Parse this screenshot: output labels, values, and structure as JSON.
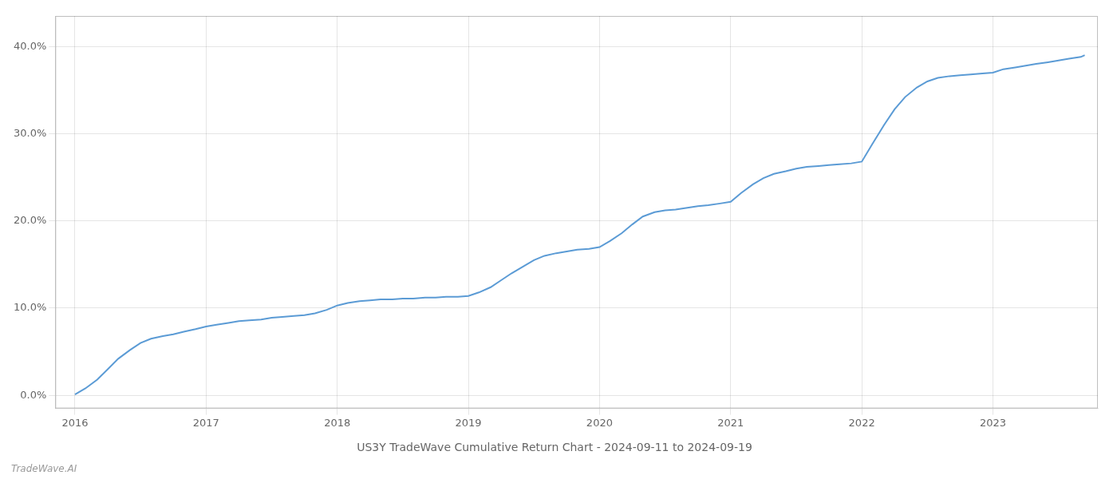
{
  "chart_data": {
    "type": "line",
    "title": "US3Y TradeWave Cumulative Return Chart - 2024-09-11 to 2024-09-19",
    "annotations": [
      "TradeWave.AI"
    ],
    "color": "#5b9bd5",
    "x": [
      2016.0,
      2016.08,
      2016.17,
      2016.25,
      2016.33,
      2016.42,
      2016.5,
      2016.58,
      2016.67,
      2016.75,
      2016.83,
      2016.92,
      2017.0,
      2017.08,
      2017.17,
      2017.25,
      2017.33,
      2017.42,
      2017.5,
      2017.58,
      2017.67,
      2017.75,
      2017.83,
      2017.92,
      2018.0,
      2018.08,
      2018.17,
      2018.25,
      2018.33,
      2018.42,
      2018.5,
      2018.58,
      2018.67,
      2018.75,
      2018.83,
      2018.92,
      2019.0,
      2019.08,
      2019.17,
      2019.25,
      2019.33,
      2019.42,
      2019.5,
      2019.58,
      2019.67,
      2019.75,
      2019.83,
      2019.92,
      2020.0,
      2020.08,
      2020.17,
      2020.25,
      2020.33,
      2020.42,
      2020.5,
      2020.58,
      2020.67,
      2020.75,
      2020.83,
      2020.92,
      2021.0,
      2021.08,
      2021.17,
      2021.25,
      2021.33,
      2021.42,
      2021.5,
      2021.58,
      2021.67,
      2021.75,
      2021.83,
      2021.92,
      2022.0,
      2022.08,
      2022.17,
      2022.25,
      2022.33,
      2022.42,
      2022.5,
      2022.58,
      2022.67,
      2022.75,
      2022.83,
      2022.92,
      2023.0,
      2023.08,
      2023.17,
      2023.25,
      2023.33,
      2023.42,
      2023.5,
      2023.58,
      2023.67,
      2023.7
    ],
    "values": [
      0.001,
      0.008,
      0.018,
      0.03,
      0.042,
      0.052,
      0.06,
      0.065,
      0.068,
      0.07,
      0.073,
      0.076,
      0.079,
      0.081,
      0.083,
      0.085,
      0.086,
      0.087,
      0.089,
      0.09,
      0.091,
      0.092,
      0.094,
      0.098,
      0.103,
      0.106,
      0.108,
      0.109,
      0.11,
      0.11,
      0.111,
      0.111,
      0.112,
      0.112,
      0.113,
      0.113,
      0.114,
      0.118,
      0.124,
      0.132,
      0.14,
      0.148,
      0.155,
      0.16,
      0.163,
      0.165,
      0.167,
      0.168,
      0.17,
      0.177,
      0.186,
      0.196,
      0.205,
      0.21,
      0.212,
      0.213,
      0.215,
      0.217,
      0.218,
      0.22,
      0.222,
      0.232,
      0.242,
      0.249,
      0.254,
      0.257,
      0.26,
      0.262,
      0.263,
      0.264,
      0.265,
      0.266,
      0.268,
      0.288,
      0.31,
      0.328,
      0.342,
      0.353,
      0.36,
      0.364,
      0.366,
      0.367,
      0.368,
      0.369,
      0.37,
      0.374,
      0.376,
      0.378,
      0.38,
      0.382,
      0.384,
      0.386,
      0.388,
      0.39
    ],
    "xlim": [
      2015.85,
      2023.8
    ],
    "ylim": [
      -0.015,
      0.435
    ],
    "xticks": [
      2016,
      2017,
      2018,
      2019,
      2020,
      2021,
      2022,
      2023
    ],
    "yticks": [
      {
        "value": 0.0,
        "label": "0.0%"
      },
      {
        "value": 0.1,
        "label": "10.0%"
      },
      {
        "value": 0.2,
        "label": "20.0%"
      },
      {
        "value": 0.3,
        "label": "30.0%"
      },
      {
        "value": 0.4,
        "label": "40.0%"
      }
    ],
    "grid": true
  }
}
